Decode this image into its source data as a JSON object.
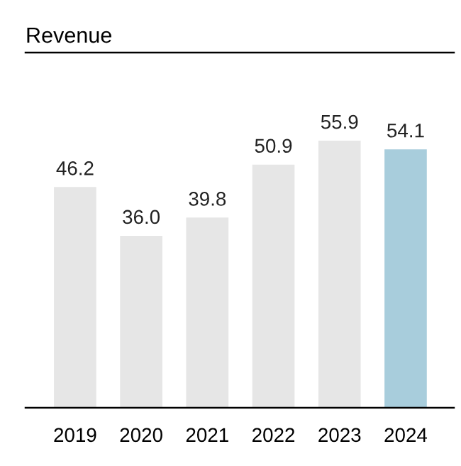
{
  "chart_data": {
    "type": "bar",
    "title": "Revenue",
    "categories": [
      "2019",
      "2020",
      "2021",
      "2022",
      "2023",
      "2024"
    ],
    "values": [
      46.2,
      36.0,
      39.8,
      50.9,
      55.9,
      54.1
    ],
    "colors": [
      "#e6e6e6",
      "#e6e6e6",
      "#e6e6e6",
      "#e6e6e6",
      "#e6e6e6",
      "#a8cddc"
    ],
    "value_labels": [
      "46.2",
      "36.0",
      "39.8",
      "50.9",
      "55.9",
      "54.1"
    ],
    "grid": false,
    "legend": false
  }
}
